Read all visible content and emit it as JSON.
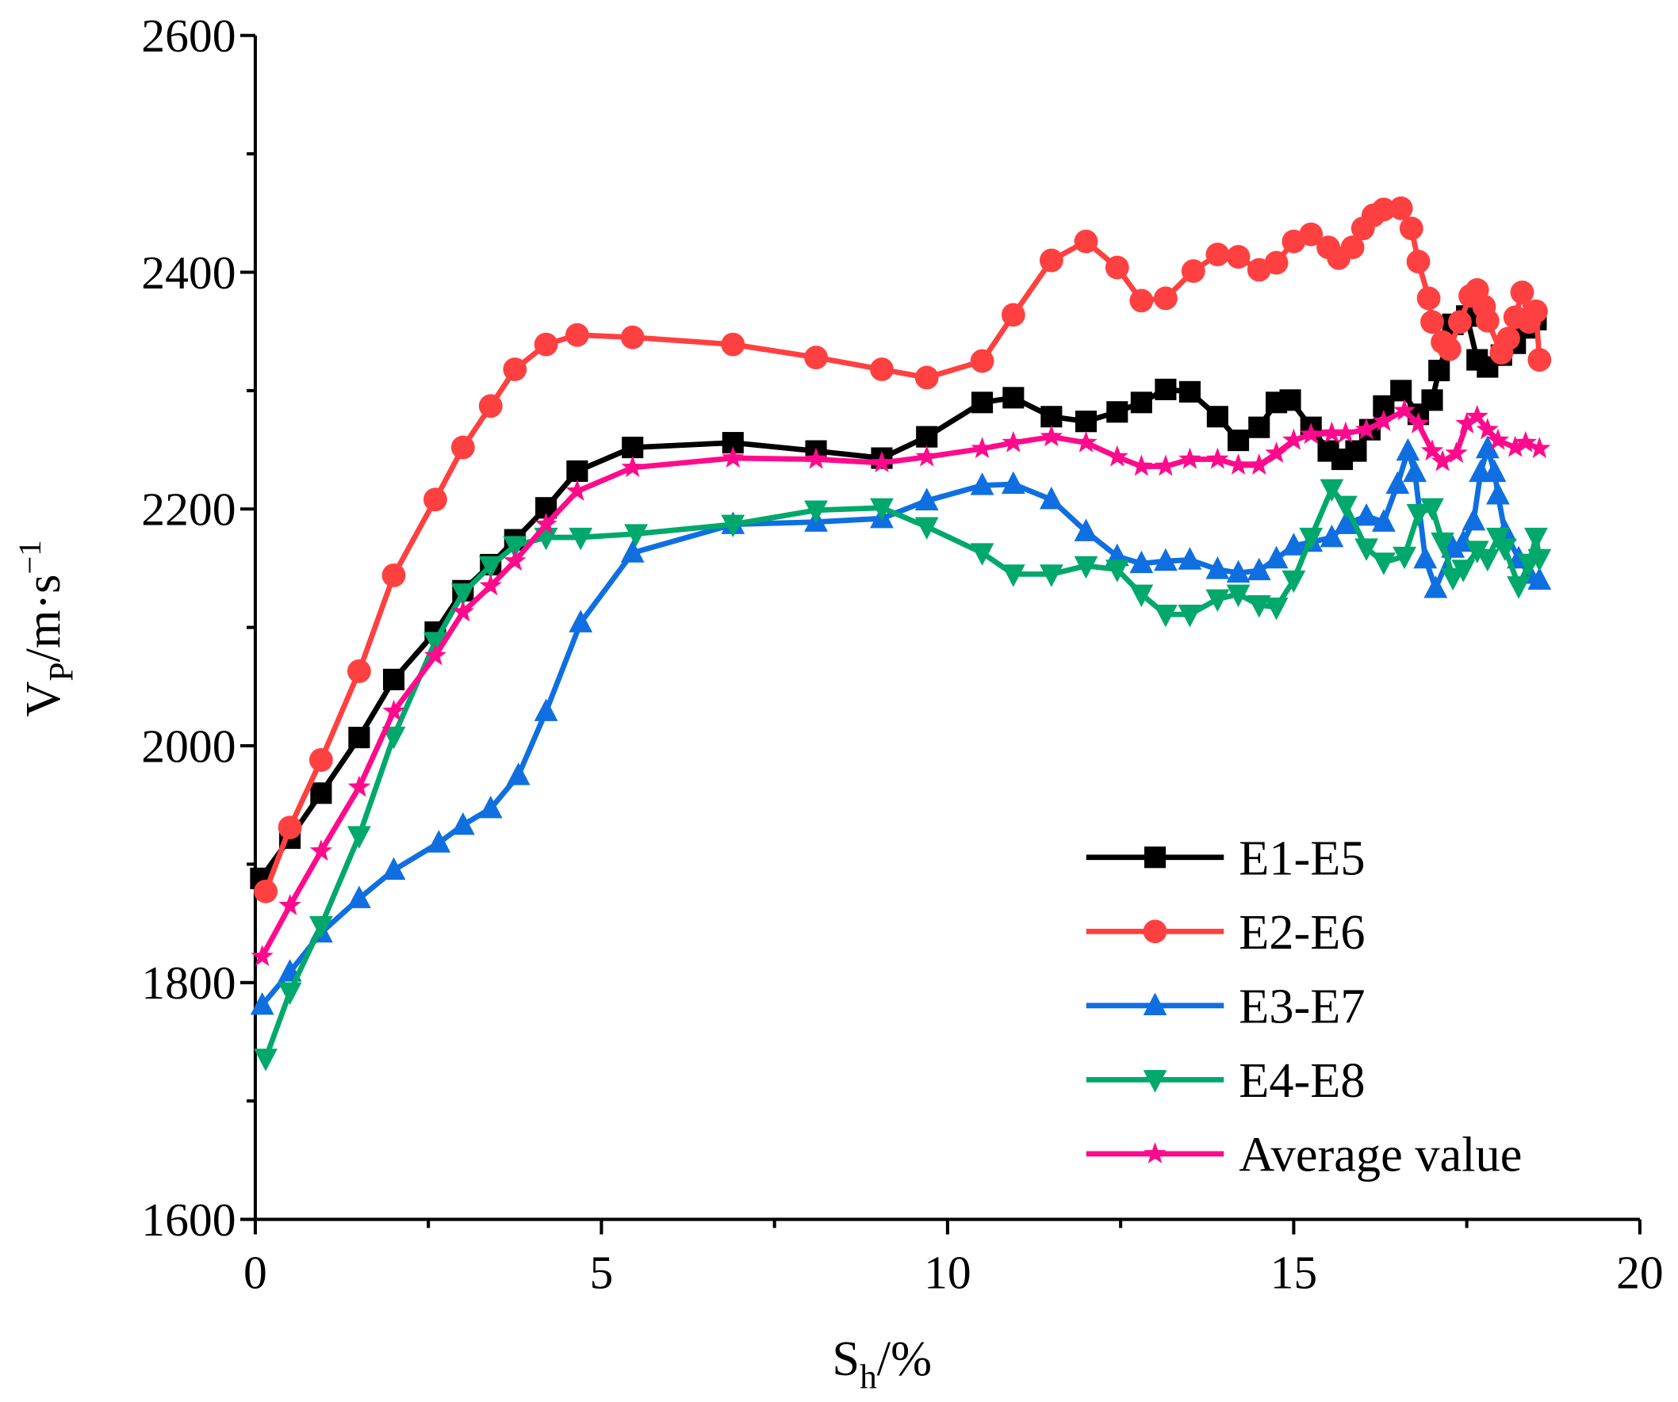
{
  "chart_data": {
    "type": "line",
    "title": "",
    "xlabel": {
      "main": "S",
      "sub": "h",
      "rest": "/%"
    },
    "ylabel": {
      "main": "V",
      "sub": "P",
      "rest": "/m·s",
      "sup": "−1"
    },
    "xlim": [
      0,
      20
    ],
    "ylim": [
      1600,
      2600
    ],
    "xticks": [
      "0",
      "5",
      "10",
      "15",
      "20"
    ],
    "yticks": [
      "1600",
      "1800",
      "2000",
      "2200",
      "2400",
      "2600"
    ],
    "grid": false,
    "legend_position": "bottom-right",
    "series": [
      {
        "name": "E1-E5",
        "color": "#000000",
        "marker": "square",
        "x": [
          0.08,
          0.5,
          0.95,
          1.5,
          2.0,
          2.6,
          3.0,
          3.4,
          3.75,
          4.2,
          4.65,
          5.45,
          6.9,
          8.1,
          9.05,
          9.7,
          10.5,
          10.95,
          11.5,
          12.0,
          12.45,
          12.8,
          13.15,
          13.5,
          13.9,
          14.2,
          14.5,
          14.75,
          14.95,
          15.25,
          15.5,
          15.7,
          15.9,
          16.1,
          16.3,
          16.55,
          16.8,
          17.0,
          17.1,
          17.3,
          17.5,
          17.65,
          17.8,
          18.0,
          18.2,
          18.35,
          18.5
        ],
        "y": [
          1888,
          1922,
          1960,
          2007,
          2056,
          2096,
          2131,
          2153,
          2174,
          2201,
          2232,
          2252,
          2256,
          2249,
          2243,
          2261,
          2290,
          2294,
          2278,
          2274,
          2282,
          2290,
          2301,
          2299,
          2278,
          2258,
          2269,
          2290,
          2292,
          2269,
          2249,
          2242,
          2249,
          2267,
          2287,
          2300,
          2280,
          2292,
          2317,
          2356,
          2363,
          2326,
          2320,
          2330,
          2340,
          2353,
          2360
        ]
      },
      {
        "name": "E2-E6",
        "color": "#FF4040",
        "marker": "circle",
        "x": [
          0.15,
          0.5,
          0.95,
          1.5,
          2.0,
          2.6,
          3.0,
          3.4,
          3.75,
          4.2,
          4.65,
          5.45,
          6.9,
          8.1,
          9.05,
          9.7,
          10.5,
          10.95,
          11.5,
          12.0,
          12.45,
          12.8,
          13.15,
          13.55,
          13.9,
          14.2,
          14.5,
          14.75,
          15.0,
          15.25,
          15.5,
          15.65,
          15.85,
          16.0,
          16.15,
          16.3,
          16.55,
          16.7,
          16.8,
          16.95,
          17.0,
          17.15,
          17.25,
          17.4,
          17.55,
          17.65,
          17.75,
          17.8,
          18.0,
          18.1,
          18.2,
          18.3,
          18.4,
          18.5,
          18.55
        ],
        "y": [
          1877,
          1931,
          1988,
          2063,
          2144,
          2208,
          2252,
          2287,
          2318,
          2339,
          2347,
          2345,
          2339,
          2328,
          2318,
          2311,
          2325,
          2364,
          2410,
          2426,
          2404,
          2376,
          2378,
          2401,
          2415,
          2413,
          2402,
          2408,
          2426,
          2432,
          2421,
          2412,
          2421,
          2437,
          2448,
          2453,
          2454,
          2437,
          2409,
          2378,
          2358,
          2341,
          2335,
          2358,
          2380,
          2385,
          2371,
          2359,
          2332,
          2344,
          2362,
          2383,
          2358,
          2367,
          2326
        ]
      },
      {
        "name": "E3-E7",
        "color": "#0F6FE0",
        "marker": "triangle-up",
        "x": [
          0.1,
          0.5,
          0.95,
          1.5,
          2.0,
          2.65,
          3.0,
          3.4,
          3.8,
          4.2,
          4.7,
          5.45,
          6.9,
          8.1,
          9.05,
          9.7,
          10.5,
          10.95,
          11.5,
          12.0,
          12.45,
          12.8,
          13.15,
          13.5,
          13.9,
          14.2,
          14.5,
          14.75,
          15.0,
          15.25,
          15.55,
          15.75,
          16.05,
          16.3,
          16.5,
          16.65,
          16.75,
          16.9,
          17.05,
          17.3,
          17.45,
          17.6,
          17.7,
          17.8,
          17.9,
          17.95,
          18.05,
          18.25,
          18.4,
          18.55
        ],
        "y": [
          1781,
          1809,
          1842,
          1871,
          1895,
          1918,
          1933,
          1947,
          1975,
          2029,
          2104,
          2163,
          2187,
          2189,
          2192,
          2207,
          2220,
          2221,
          2208,
          2181,
          2160,
          2154,
          2156,
          2157,
          2149,
          2146,
          2148,
          2158,
          2169,
          2172,
          2176,
          2187,
          2194,
          2189,
          2221,
          2249,
          2231,
          2158,
          2133,
          2167,
          2172,
          2190,
          2231,
          2251,
          2231,
          2212,
          2181,
          2158,
          2145,
          2140
        ]
      },
      {
        "name": "E4-E8",
        "color": "#00A86B",
        "marker": "triangle-down",
        "x": [
          0.15,
          0.5,
          0.95,
          1.5,
          2.0,
          2.6,
          3.0,
          3.4,
          3.75,
          4.2,
          4.7,
          5.5,
          6.9,
          8.1,
          9.05,
          9.7,
          10.5,
          10.95,
          11.5,
          12.0,
          12.45,
          12.8,
          13.15,
          13.5,
          13.9,
          14.2,
          14.5,
          14.75,
          15.0,
          15.25,
          15.55,
          15.75,
          16.05,
          16.3,
          16.6,
          16.8,
          17.0,
          17.15,
          17.3,
          17.45,
          17.65,
          17.8,
          17.95,
          18.05,
          18.25,
          18.4,
          18.5,
          18.55
        ],
        "y": [
          1736,
          1792,
          1848,
          1924,
          2008,
          2088,
          2129,
          2152,
          2169,
          2176,
          2176,
          2179,
          2187,
          2199,
          2201,
          2185,
          2163,
          2145,
          2145,
          2152,
          2149,
          2128,
          2111,
          2111,
          2124,
          2128,
          2119,
          2117,
          2140,
          2176,
          2217,
          2203,
          2167,
          2155,
          2160,
          2196,
          2201,
          2172,
          2142,
          2149,
          2165,
          2158,
          2176,
          2167,
          2135,
          2154,
          2176,
          2158
        ]
      },
      {
        "name": "Average value",
        "color": "#FF0A8C",
        "marker": "star",
        "x": [
          0.1,
          0.5,
          0.95,
          1.5,
          2.0,
          2.6,
          3.0,
          3.4,
          3.75,
          4.2,
          4.65,
          5.45,
          6.9,
          8.1,
          9.05,
          9.7,
          10.5,
          10.95,
          11.5,
          12.0,
          12.45,
          12.8,
          13.15,
          13.5,
          13.9,
          14.2,
          14.5,
          14.75,
          15.0,
          15.25,
          15.55,
          15.75,
          16.05,
          16.3,
          16.6,
          16.8,
          17.0,
          17.15,
          17.35,
          17.5,
          17.65,
          17.8,
          17.95,
          18.2,
          18.35,
          18.55
        ],
        "y": [
          1822,
          1865,
          1911,
          1965,
          2029,
          2076,
          2113,
          2135,
          2156,
          2187,
          2215,
          2235,
          2243,
          2242,
          2239,
          2244,
          2251,
          2256,
          2261,
          2256,
          2244,
          2236,
          2236,
          2242,
          2242,
          2237,
          2237,
          2247,
          2258,
          2263,
          2264,
          2264,
          2267,
          2274,
          2283,
          2272,
          2249,
          2240,
          2247,
          2272,
          2278,
          2267,
          2258,
          2252,
          2256,
          2251
        ]
      }
    ]
  }
}
